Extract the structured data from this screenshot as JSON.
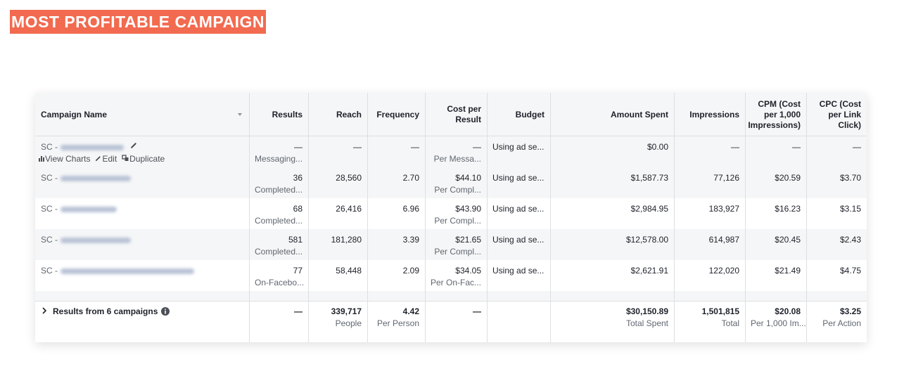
{
  "banner": "MOST PROFITABLE CAMPAIGN",
  "table": {
    "headers": [
      "Campaign Name",
      "Results",
      "Reach",
      "Frequency",
      "Cost per Result",
      "Budget",
      "Amount Spent",
      "Impressions",
      "CPM (Cost per 1,000 Impressions)",
      "CPC (Cost per Link Click)"
    ],
    "rows": [
      {
        "name": "SC -",
        "actions": [
          "View Charts",
          "Edit",
          "Duplicate"
        ],
        "cells": [
          {
            "main": "—",
            "sub": "Messaging..."
          },
          {
            "main": "—"
          },
          {
            "main": "—"
          },
          {
            "main": "—",
            "sub": "Per Messa..."
          },
          {
            "main": "Using ad se..."
          },
          {
            "main": "$0.00"
          },
          {
            "main": "—"
          },
          {
            "main": "—"
          },
          {
            "main": "—"
          }
        ]
      },
      {
        "name": "SC -",
        "cells": [
          {
            "main": "36",
            "sub": "Completed..."
          },
          {
            "main": "28,560"
          },
          {
            "main": "2.70"
          },
          {
            "main": "$44.10",
            "sub": "Per Compl..."
          },
          {
            "main": "Using ad se..."
          },
          {
            "main": "$1,587.73"
          },
          {
            "main": "77,126"
          },
          {
            "main": "$20.59"
          },
          {
            "main": "$3.70"
          }
        ]
      },
      {
        "name": "SC -",
        "cells": [
          {
            "main": "68",
            "sub": "Completed..."
          },
          {
            "main": "26,416"
          },
          {
            "main": "6.96"
          },
          {
            "main": "$43.90",
            "sub": "Per Compl..."
          },
          {
            "main": "Using ad se..."
          },
          {
            "main": "$2,984.95"
          },
          {
            "main": "183,927"
          },
          {
            "main": "$16.23"
          },
          {
            "main": "$3.15"
          }
        ]
      },
      {
        "name": "SC -",
        "cells": [
          {
            "main": "581",
            "sub": "Completed..."
          },
          {
            "main": "181,280"
          },
          {
            "main": "3.39"
          },
          {
            "main": "$21.65",
            "sub": "Per Compl..."
          },
          {
            "main": "Using ad se..."
          },
          {
            "main": "$12,578.00"
          },
          {
            "main": "614,987"
          },
          {
            "main": "$20.45"
          },
          {
            "main": "$2.43"
          }
        ]
      },
      {
        "name": "SC -",
        "cells": [
          {
            "main": "77",
            "sub": "On-Facebo..."
          },
          {
            "main": "58,448"
          },
          {
            "main": "2.09"
          },
          {
            "main": "$34.05",
            "sub": "Per On-Fac..."
          },
          {
            "main": "Using ad se..."
          },
          {
            "main": "$2,621.91"
          },
          {
            "main": "122,020"
          },
          {
            "main": "$21.49"
          },
          {
            "main": "$4.75"
          }
        ]
      }
    ],
    "footer": {
      "label": "Results from 6 campaigns",
      "cells": [
        {
          "main": "—"
        },
        {
          "main": "339,717",
          "sub": "People"
        },
        {
          "main": "4.42",
          "sub": "Per Person"
        },
        {
          "main": "—"
        },
        null,
        {
          "main": "$30,150.89",
          "sub": "Total Spent"
        },
        {
          "main": "1,501,815",
          "sub": "Total"
        },
        {
          "main": "$20.08",
          "sub": "Per 1,000 Im..."
        },
        {
          "main": "$3.25",
          "sub": "Per Action"
        }
      ]
    }
  }
}
